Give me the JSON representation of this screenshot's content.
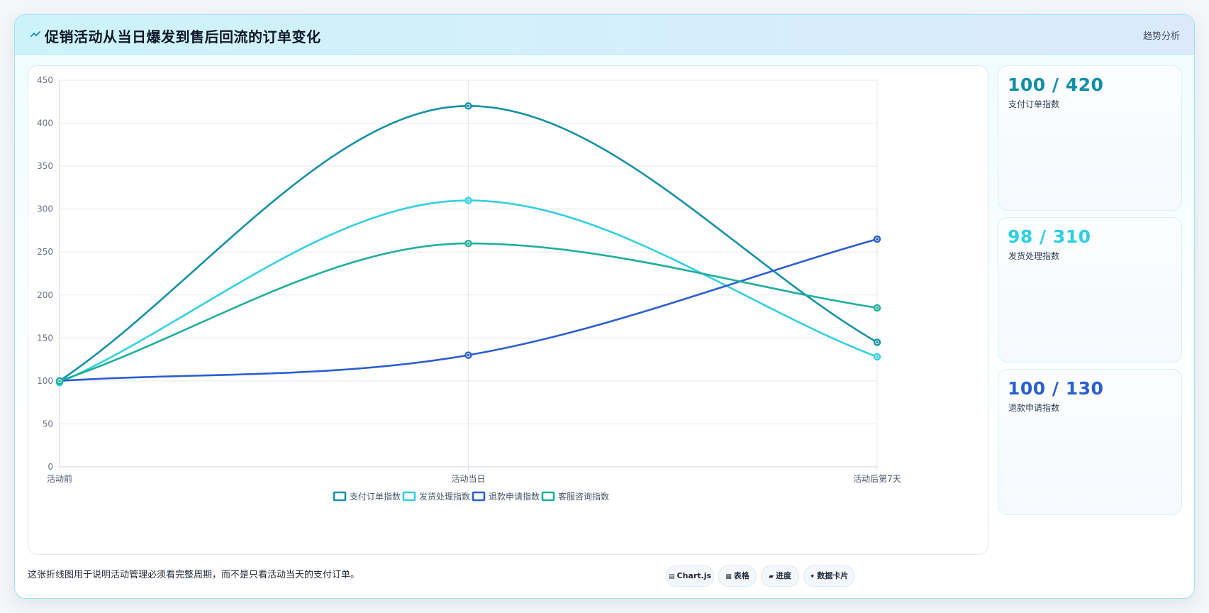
{
  "header": {
    "title": "促销活动从当日爆发到售后回流的订单变化",
    "tag": "趋势分析",
    "icon": "trend-line-icon"
  },
  "stats": [
    {
      "value": "100 / 420",
      "label": "支付订单指数",
      "color": "#0e8fa6"
    },
    {
      "value": "98 / 310",
      "label": "发货处理指数",
      "color": "#2ecfe3"
    },
    {
      "value": "100 / 130",
      "label": "退款申请指数",
      "color": "#2a5fcf"
    }
  ],
  "footer": {
    "note": "这张折线图用于说明活动管理必须看完整周期，而不是只看活动当天的支付订单。",
    "buttons": [
      {
        "label": "Chart.js",
        "icon": "chart-icon",
        "glyph": "▤"
      },
      {
        "label": "表格",
        "icon": "table-icon",
        "glyph": "▦"
      },
      {
        "label": "进度",
        "icon": "progress-icon",
        "glyph": "▰"
      },
      {
        "label": "数据卡片",
        "icon": "card-icon",
        "glyph": "✦"
      }
    ]
  },
  "chart_data": {
    "type": "line",
    "title": "",
    "xlabel": "",
    "ylabel": "",
    "categories": [
      "活动前",
      "活动当日",
      "活动后第7天"
    ],
    "ylim": [
      0,
      450
    ],
    "yticks": [
      0,
      50,
      100,
      150,
      200,
      250,
      300,
      350,
      400,
      450
    ],
    "grid": true,
    "legend_position": "bottom",
    "series": [
      {
        "name": "支付订单指数",
        "values": [
          100,
          420,
          145
        ],
        "color": "#1590a4"
      },
      {
        "name": "发货处理指数",
        "values": [
          98,
          310,
          128
        ],
        "color": "#33cfe0"
      },
      {
        "name": "退款申请指数",
        "values": [
          100,
          130,
          265
        ],
        "color": "#2a5fcf"
      },
      {
        "name": "客服咨询指数",
        "values": [
          100,
          260,
          185
        ],
        "color": "#1fae9d"
      }
    ]
  }
}
